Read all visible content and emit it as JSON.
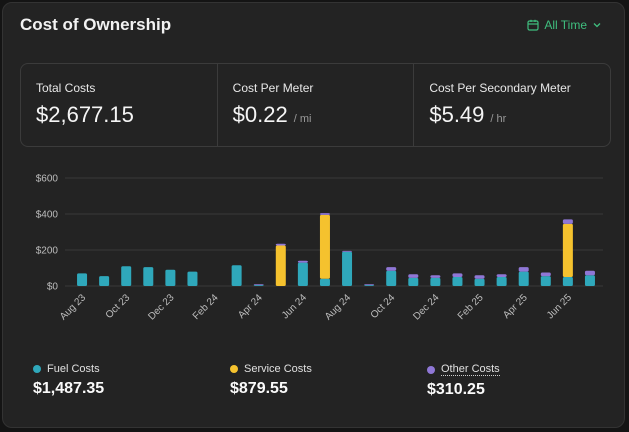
{
  "header": {
    "title": "Cost of Ownership",
    "range_label": "All Time"
  },
  "stats": [
    {
      "label": "Total Costs",
      "value": "$2,677.15",
      "unit": ""
    },
    {
      "label": "Cost Per Meter",
      "value": "$0.22",
      "unit": "/ mi"
    },
    {
      "label": "Cost Per Secondary Meter",
      "value": "$5.49",
      "unit": "/ hr"
    }
  ],
  "colors": {
    "fuel": "#2fa8bb",
    "service": "#f5c22e",
    "other": "#8f77d6",
    "accent": "#3fbf7f"
  },
  "legend": [
    {
      "label": "Fuel Costs",
      "total": "$1,487.35"
    },
    {
      "label": "Service Costs",
      "total": "$879.55"
    },
    {
      "label": "Other Costs",
      "total": "$310.25"
    }
  ],
  "chart_data": {
    "type": "bar",
    "stacked": true,
    "y_ticks": [
      "$0",
      "$200",
      "$400",
      "$600"
    ],
    "ylim": [
      0,
      600
    ],
    "x_tick_labels": [
      "Aug 23",
      "Oct 23",
      "Dec 23",
      "Feb 24",
      "Apr 24",
      "Jun 24",
      "Aug 24",
      "Oct 24",
      "Dec 24",
      "Feb 25",
      "Apr 25",
      "Jun 25"
    ],
    "categories": [
      "Aug 23",
      "Sep 23",
      "Oct 23",
      "Nov 23",
      "Dec 23",
      "Jan 24",
      "Feb 24",
      "Mar 24",
      "Apr 24",
      "May 24",
      "Jun 24",
      "Jul 24",
      "Aug 24",
      "Sep 24",
      "Oct 24",
      "Nov 24",
      "Dec 24",
      "Jan 25",
      "Feb 25",
      "Mar 25",
      "Apr 25",
      "May 25",
      "Jun 25",
      "Jul 25"
    ],
    "series": [
      {
        "name": "Fuel Costs",
        "values": [
          70,
          55,
          110,
          105,
          90,
          80,
          0,
          115,
          5,
          0,
          130,
          40,
          190,
          5,
          85,
          45,
          45,
          50,
          40,
          50,
          80,
          55,
          50,
          60
        ]
      },
      {
        "name": "Service Costs",
        "values": [
          0,
          0,
          0,
          0,
          0,
          0,
          0,
          0,
          0,
          225,
          0,
          355,
          0,
          0,
          0,
          0,
          0,
          0,
          0,
          0,
          0,
          0,
          295,
          0
        ]
      },
      {
        "name": "Other Costs",
        "values": [
          0,
          0,
          0,
          0,
          0,
          0,
          0,
          0,
          5,
          10,
          10,
          10,
          5,
          5,
          20,
          20,
          15,
          20,
          20,
          15,
          25,
          20,
          25,
          25
        ]
      }
    ],
    "grid": true,
    "legend_position": "bottom"
  }
}
